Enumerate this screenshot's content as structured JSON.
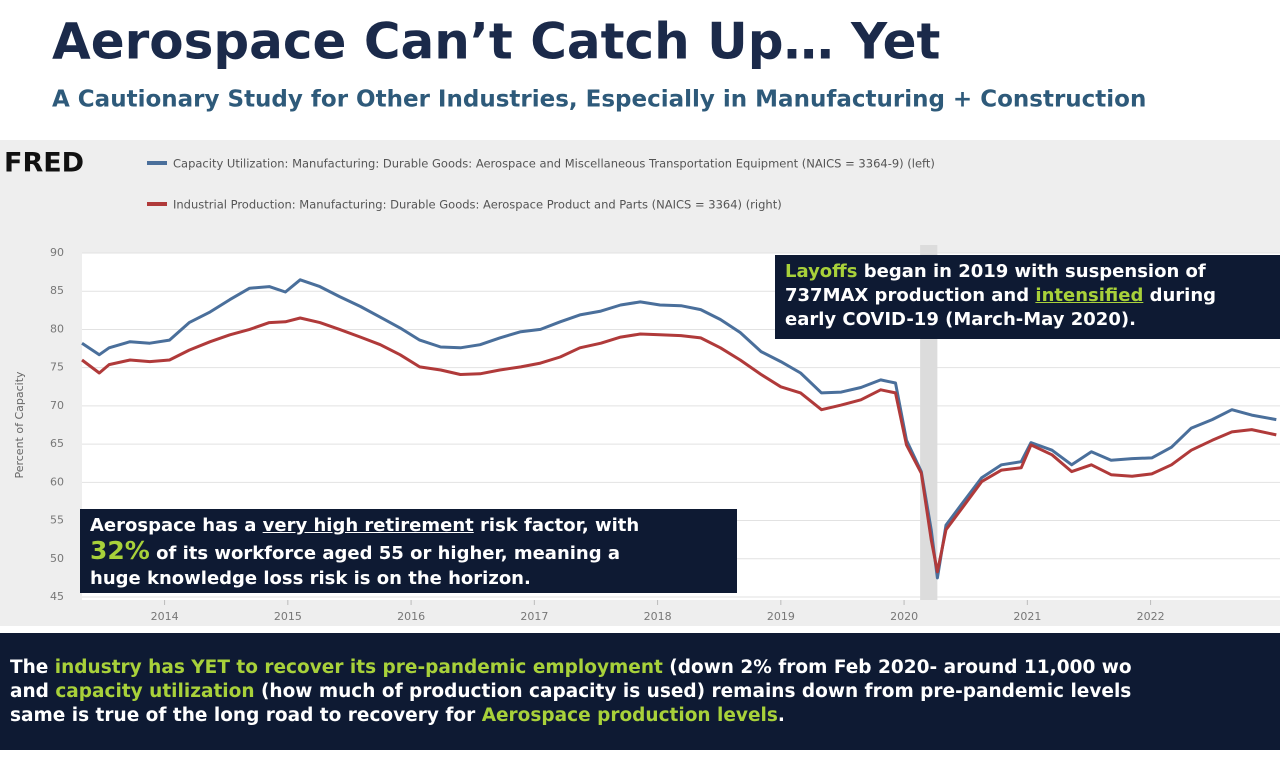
{
  "chart_data": {
    "type": "line",
    "title": "Aerospace Can’t Catch Up… Yet",
    "subtitle": "A Cautionary Study for Other Industries, Especially in Manufacturing + Construction",
    "logo": "FRED",
    "ylabel": "Percent of Capacity",
    "x": [
      2013.33,
      2013.47,
      2013.55,
      2013.72,
      2013.88,
      2014.04,
      2014.2,
      2014.37,
      2014.53,
      2014.69,
      2014.85,
      2014.98,
      2015.1,
      2015.26,
      2015.42,
      2015.59,
      2015.75,
      2015.91,
      2016.07,
      2016.24,
      2016.4,
      2016.56,
      2016.72,
      2016.89,
      2017.05,
      2017.21,
      2017.37,
      2017.54,
      2017.7,
      2017.86,
      2018.02,
      2018.19,
      2018.35,
      2018.51,
      2018.67,
      2018.84,
      2019.0,
      2019.16,
      2019.33,
      2019.49,
      2019.65,
      2019.81,
      2019.93,
      2020.02,
      2020.14,
      2020.22,
      2020.27,
      2020.34,
      2020.46,
      2020.63,
      2020.79,
      2020.95,
      2021.03,
      2021.2,
      2021.36,
      2021.52,
      2021.68,
      2021.85,
      2022.01,
      2022.17,
      2022.33,
      2022.5,
      2022.66,
      2022.82,
      2023.02
    ],
    "series": [
      {
        "name": "Capacity Utilization: Manufacturing: Durable Goods: Aerospace and Miscellaneous Transportation Equipment (NAICS = 3364-9) (left)",
        "color": "#4a6f9b",
        "values": [
          78.2,
          76.7,
          77.6,
          78.4,
          78.2,
          78.6,
          80.9,
          82.3,
          83.9,
          85.4,
          85.6,
          84.9,
          86.5,
          85.6,
          84.3,
          83.0,
          81.6,
          80.2,
          78.6,
          77.7,
          77.6,
          78.0,
          78.9,
          79.7,
          80.0,
          81.0,
          81.9,
          82.4,
          83.2,
          83.6,
          83.2,
          83.1,
          82.6,
          81.3,
          79.6,
          77.1,
          75.8,
          74.3,
          71.7,
          71.8,
          72.4,
          73.4,
          73.0,
          65.5,
          61.4,
          53.8,
          47.5,
          54.4,
          57.0,
          60.6,
          62.3,
          62.7,
          65.2,
          64.2,
          62.3,
          64.0,
          62.9,
          63.1,
          63.2,
          64.6,
          67.1,
          68.2,
          69.5,
          68.8,
          68.2
        ]
      },
      {
        "name": "Industrial Production: Manufacturing: Durable Goods: Aerospace Product and Parts (NAICS = 3364) (right)",
        "color": "#b03a3a",
        "values": [
          76.0,
          74.3,
          75.4,
          76.0,
          75.8,
          76.0,
          77.3,
          78.4,
          79.3,
          80.0,
          80.9,
          81.0,
          81.5,
          80.9,
          80.0,
          79.0,
          78.0,
          76.7,
          75.1,
          74.7,
          74.1,
          74.2,
          74.7,
          75.1,
          75.6,
          76.4,
          77.6,
          78.2,
          79.0,
          79.4,
          79.3,
          79.2,
          78.9,
          77.6,
          76.0,
          74.1,
          72.5,
          71.7,
          69.5,
          70.1,
          70.8,
          72.1,
          71.7,
          64.9,
          61.2,
          52.5,
          48.3,
          53.8,
          56.4,
          60.1,
          61.6,
          61.9,
          64.9,
          63.6,
          61.4,
          62.3,
          61.0,
          60.8,
          61.1,
          62.3,
          64.2,
          65.5,
          66.6,
          66.9,
          66.2
        ]
      }
    ],
    "xlim": [
      2013.33,
      2023.05
    ],
    "xticks": [
      2014,
      2015,
      2016,
      2017,
      2018,
      2019,
      2020,
      2021,
      2022
    ],
    "ylim": [
      45,
      90
    ],
    "yticks": [
      45,
      50,
      55,
      60,
      65,
      70,
      75,
      80,
      85,
      90
    ],
    "grid": true,
    "shading": [
      2020.13,
      2020.27
    ],
    "annotations": [
      {
        "lines": [
          [
            {
              "text": "Layoffs",
              "color": "#a8d13a"
            },
            {
              "text": " began in 2019 with suspension of",
              "color": "#ffffff"
            }
          ],
          [
            {
              "text": "737MAX production and ",
              "color": "#ffffff"
            },
            {
              "text": "intensified",
              "color": "#a8d13a",
              "underline": true
            },
            {
              "text": " during",
              "color": "#ffffff"
            }
          ],
          [
            {
              "text": "early COVID-19 (March-May 2020).",
              "color": "#ffffff"
            }
          ]
        ]
      },
      {
        "lines": [
          [
            {
              "text": "Aerospace has a ",
              "color": "#ffffff"
            },
            {
              "text": "very high retirement",
              "color": "#ffffff",
              "underline": true
            },
            {
              "text": " risk factor, with",
              "color": "#ffffff"
            }
          ],
          [
            {
              "text": "32%",
              "color": "#a8d13a",
              "large": true
            },
            {
              "text": " of its workforce aged 55 or higher, meaning a",
              "color": "#ffffff"
            }
          ],
          [
            {
              "text": "huge knowledge loss risk is on the horizon.",
              "color": "#ffffff"
            }
          ]
        ]
      },
      {
        "lines": [
          [
            {
              "text": "The ",
              "color": "#ffffff"
            },
            {
              "text": "industry has YET to recover its pre-pandemic employment",
              "color": "#a8d13a"
            },
            {
              "text": " (down 2% from Feb 2020- around 11,000 wo",
              "color": "#ffffff"
            }
          ],
          [
            {
              "text": "and ",
              "color": "#ffffff"
            },
            {
              "text": "capacity utilization",
              "color": "#a8d13a"
            },
            {
              "text": " (how much of production capacity is used) remains down from pre-pandemic levels",
              "color": "#ffffff"
            }
          ],
          [
            {
              "text": "same is true of the long road to recovery for ",
              "color": "#ffffff"
            },
            {
              "text": "Aerospace production levels",
              "color": "#a8d13a"
            },
            {
              "text": ".",
              "color": "#ffffff"
            }
          ]
        ]
      }
    ]
  }
}
